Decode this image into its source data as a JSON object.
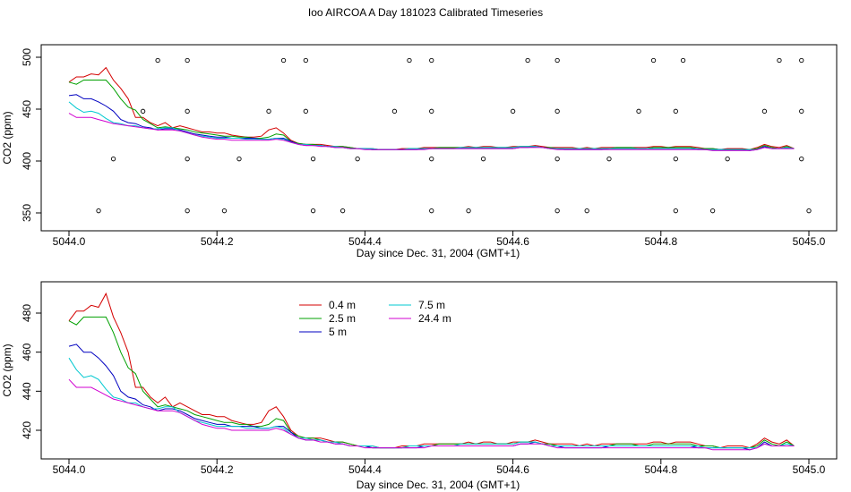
{
  "title": "Ioo AIRCOA A  Day 181023  Calibrated Timeseries",
  "chart_data": [
    {
      "type": "scatter",
      "title": "",
      "xlabel": "Day since Dec. 31, 2004 (GMT+1)",
      "ylabel": "CO2 (ppm)",
      "xlim": [
        5044.0,
        5045.0
      ],
      "ylim": [
        350,
        500
      ],
      "x_ticks": [
        "5044.0",
        "5044.2",
        "5044.4",
        "5044.6",
        "5044.8",
        "5045.0"
      ],
      "y_ticks": [
        "350",
        "400",
        "450",
        "500"
      ],
      "markers": {
        "x": [
          5044.04,
          5044.06,
          5044.1,
          5044.12,
          5044.16,
          5044.16,
          5044.16,
          5044.16,
          5044.21,
          5044.23,
          5044.27,
          5044.29,
          5044.32,
          5044.32,
          5044.33,
          5044.33,
          5044.37,
          5044.39,
          5044.44,
          5044.46,
          5044.49,
          5044.49,
          5044.49,
          5044.49,
          5044.54,
          5044.56,
          5044.6,
          5044.62,
          5044.66,
          5044.66,
          5044.66,
          5044.66,
          5044.7,
          5044.73,
          5044.77,
          5044.79,
          5044.82,
          5044.82,
          5044.82,
          5044.83,
          5044.87,
          5044.89,
          5044.94,
          5044.96,
          5044.99,
          5044.99,
          5044.99,
          5045.0
        ],
        "y": [
          352,
          402,
          448,
          497,
          352,
          402,
          448,
          497,
          352,
          402,
          448,
          497,
          497,
          448,
          402,
          352,
          352,
          402,
          448,
          497,
          352,
          402,
          448,
          497,
          352,
          402,
          448,
          497,
          497,
          448,
          402,
          352,
          352,
          402,
          448,
          497,
          448,
          402,
          352,
          497,
          352,
          402,
          448,
          497,
          497,
          448,
          402,
          352
        ]
      },
      "x": [
        5044.0,
        5044.01,
        5044.02,
        5044.03,
        5044.04,
        5044.05,
        5044.06,
        5044.07,
        5044.08,
        5044.09,
        5044.1,
        5044.11,
        5044.12,
        5044.13,
        5044.14,
        5044.15,
        5044.16,
        5044.17,
        5044.18,
        5044.19,
        5044.2,
        5044.21,
        5044.22,
        5044.23,
        5044.24,
        5044.25,
        5044.26,
        5044.27,
        5044.28,
        5044.29,
        5044.3,
        5044.31,
        5044.32,
        5044.33,
        5044.34,
        5044.35,
        5044.36,
        5044.37,
        5044.38,
        5044.39,
        5044.4,
        5044.41,
        5044.42,
        5044.43,
        5044.44,
        5044.45,
        5044.46,
        5044.47,
        5044.48,
        5044.49,
        5044.5,
        5044.51,
        5044.52,
        5044.53,
        5044.54,
        5044.55,
        5044.56,
        5044.57,
        5044.58,
        5044.59,
        5044.6,
        5044.61,
        5044.62,
        5044.63,
        5044.64,
        5044.65,
        5044.66,
        5044.67,
        5044.68,
        5044.69,
        5044.7,
        5044.71,
        5044.72,
        5044.73,
        5044.74,
        5044.75,
        5044.76,
        5044.77,
        5044.78,
        5044.79,
        5044.8,
        5044.81,
        5044.82,
        5044.83,
        5044.84,
        5044.85,
        5044.86,
        5044.87,
        5044.88,
        5044.89,
        5044.9,
        5044.91,
        5044.92,
        5044.93,
        5044.94,
        5044.95,
        5044.96,
        5044.97,
        5044.98
      ],
      "series": [
        {
          "name": "0.4 m",
          "color": "#d40000",
          "values": [
            476,
            481,
            481,
            484,
            483,
            490,
            478,
            470,
            460,
            442,
            442,
            437,
            434,
            437,
            432,
            434,
            432,
            430,
            428,
            428,
            427,
            427,
            425,
            424,
            423,
            423,
            424,
            430,
            432,
            427,
            420,
            417,
            416,
            416,
            416,
            415,
            414,
            414,
            413,
            412,
            412,
            412,
            411,
            411,
            411,
            412,
            412,
            412,
            413,
            413,
            413,
            413,
            413,
            413,
            414,
            413,
            414,
            414,
            413,
            413,
            414,
            414,
            414,
            415,
            414,
            413,
            413,
            413,
            413,
            412,
            413,
            412,
            413,
            413,
            413,
            413,
            413,
            413,
            413,
            414,
            414,
            413,
            414,
            414,
            414,
            413,
            412,
            412,
            411,
            412,
            412,
            412,
            411,
            413,
            416,
            414,
            413,
            415,
            412
          ]
        },
        {
          "name": "2.5 m",
          "color": "#00a000",
          "values": [
            476,
            474,
            478,
            478,
            478,
            478,
            470,
            460,
            452,
            449,
            440,
            436,
            432,
            433,
            432,
            431,
            430,
            428,
            427,
            426,
            425,
            424,
            424,
            423,
            423,
            422,
            422,
            423,
            426,
            425,
            419,
            417,
            416,
            416,
            415,
            414,
            414,
            414,
            413,
            412,
            412,
            411,
            411,
            411,
            411,
            411,
            412,
            412,
            412,
            412,
            413,
            413,
            413,
            413,
            413,
            413,
            413,
            413,
            413,
            413,
            413,
            414,
            414,
            414,
            413,
            413,
            412,
            412,
            412,
            412,
            412,
            412,
            412,
            412,
            413,
            413,
            413,
            412,
            412,
            413,
            413,
            413,
            413,
            413,
            413,
            412,
            412,
            412,
            411,
            411,
            411,
            411,
            411,
            412,
            415,
            413,
            412,
            414,
            412
          ]
        },
        {
          "name": "5 m",
          "color": "#0000c0",
          "values": [
            463,
            464,
            460,
            460,
            457,
            453,
            448,
            440,
            437,
            436,
            433,
            432,
            430,
            431,
            431,
            430,
            428,
            426,
            425,
            424,
            423,
            423,
            422,
            422,
            422,
            422,
            421,
            421,
            422,
            422,
            419,
            416,
            415,
            415,
            415,
            414,
            413,
            413,
            412,
            412,
            412,
            411,
            411,
            411,
            411,
            411,
            411,
            411,
            412,
            412,
            412,
            412,
            412,
            412,
            412,
            412,
            412,
            412,
            412,
            412,
            412,
            413,
            413,
            414,
            413,
            412,
            412,
            411,
            411,
            411,
            411,
            411,
            411,
            412,
            412,
            412,
            412,
            412,
            412,
            412,
            412,
            412,
            412,
            412,
            412,
            411,
            411,
            411,
            411,
            411,
            411,
            411,
            410,
            411,
            414,
            412,
            412,
            412,
            412
          ]
        },
        {
          "name": "7.5 m",
          "color": "#00c8d0",
          "values": [
            457,
            451,
            447,
            448,
            446,
            441,
            437,
            436,
            434,
            434,
            432,
            431,
            431,
            432,
            432,
            429,
            427,
            425,
            424,
            423,
            422,
            422,
            422,
            422,
            421,
            421,
            421,
            421,
            422,
            421,
            418,
            416,
            416,
            415,
            415,
            414,
            414,
            413,
            412,
            412,
            412,
            412,
            411,
            411,
            411,
            411,
            412,
            412,
            412,
            412,
            412,
            412,
            412,
            413,
            413,
            413,
            413,
            413,
            413,
            413,
            413,
            414,
            414,
            414,
            413,
            412,
            412,
            412,
            412,
            412,
            412,
            412,
            412,
            412,
            412,
            412,
            412,
            412,
            412,
            412,
            412,
            412,
            412,
            412,
            412,
            412,
            411,
            411,
            411,
            411,
            411,
            411,
            411,
            411,
            413,
            412,
            412,
            413,
            412
          ]
        },
        {
          "name": "24.4 m",
          "color": "#d000d0",
          "values": [
            446,
            442,
            442,
            442,
            440,
            438,
            436,
            435,
            434,
            433,
            432,
            431,
            430,
            430,
            430,
            429,
            427,
            425,
            423,
            422,
            421,
            421,
            420,
            420,
            420,
            420,
            420,
            420,
            421,
            420,
            418,
            416,
            415,
            415,
            414,
            414,
            413,
            413,
            412,
            412,
            411,
            411,
            411,
            411,
            411,
            411,
            411,
            411,
            411,
            412,
            412,
            412,
            412,
            412,
            412,
            412,
            412,
            412,
            412,
            412,
            412,
            413,
            413,
            413,
            413,
            412,
            411,
            411,
            411,
            411,
            411,
            411,
            411,
            411,
            411,
            411,
            411,
            411,
            411,
            411,
            411,
            411,
            411,
            411,
            411,
            411,
            411,
            410,
            410,
            410,
            410,
            410,
            410,
            411,
            413,
            412,
            412,
            412,
            412
          ]
        }
      ]
    },
    {
      "type": "line",
      "title": "",
      "xlabel": "Day since Dec. 31, 2004 (GMT+1)",
      "ylabel": "CO2 (ppm)",
      "xlim": [
        5044.0,
        5045.0
      ],
      "ylim": [
        409,
        491
      ],
      "x_ticks": [
        "5044.0",
        "5044.2",
        "5044.4",
        "5044.6",
        "5044.8",
        "5045.0"
      ],
      "y_ticks": [
        "420",
        "440",
        "460",
        "480"
      ],
      "legend": [
        "0.4 m",
        "2.5 m",
        "5 m",
        "7.5 m",
        "24.4 m"
      ],
      "legend_position": "top-left",
      "series_ref": "same as first chart"
    }
  ]
}
